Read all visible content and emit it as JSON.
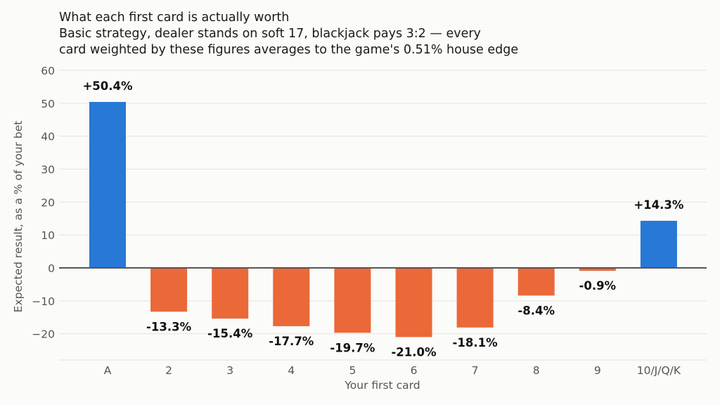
{
  "chart_data": {
    "type": "bar",
    "title": "What each first card is actually worth",
    "subtitle_lines": [
      "Basic strategy, dealer stands on soft 17, blackjack pays 3:2 — every",
      "card weighted by these figures averages to the game's 0.51% house edge"
    ],
    "xlabel": "Your first card",
    "ylabel": "Expected result, as a % of your bet",
    "categories": [
      "A",
      "2",
      "3",
      "4",
      "5",
      "6",
      "7",
      "8",
      "9",
      "10/J/Q/K"
    ],
    "values": [
      50.4,
      -13.3,
      -15.4,
      -17.7,
      -19.7,
      -21.0,
      -18.1,
      -8.4,
      -0.9,
      14.3
    ],
    "value_labels": [
      "+50.4%",
      "-13.3%",
      "-15.4%",
      "-17.7%",
      "-19.7%",
      "-21.0%",
      "-18.1%",
      "-8.4%",
      "-0.9%",
      "+14.3%"
    ],
    "ylim": [
      -28,
      62
    ],
    "yticks": [
      60,
      50,
      40,
      30,
      20,
      10,
      0,
      -10,
      -20
    ],
    "ytick_labels": [
      "60",
      "50",
      "40",
      "30",
      "20",
      "10",
      "0",
      "−10",
      "−20"
    ],
    "grid": true,
    "colors": {
      "positive": "#2878d6",
      "negative": "#eb6838",
      "zero_line": "#555555",
      "grid": "#e2e2e2",
      "axis_text": "#555555",
      "background": "#fbfbf9"
    }
  }
}
